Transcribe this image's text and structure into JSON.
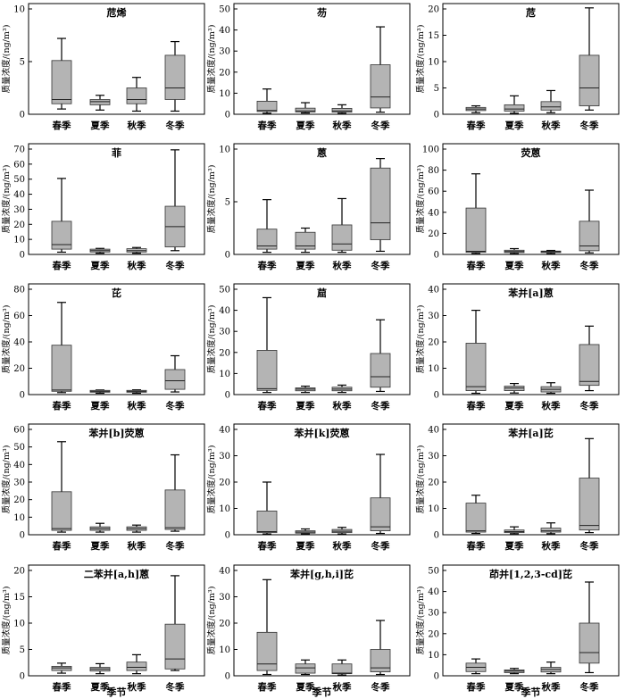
{
  "chart_data": [
    {
      "type": "box",
      "title": "苊烯",
      "ylabel": "质量浓度/(ng/m³)",
      "ylim": [
        0,
        10
      ],
      "yticks": [
        0,
        5,
        10
      ],
      "categories": [
        "春季",
        "夏季",
        "秋季",
        "冬季"
      ],
      "boxes": [
        {
          "min": 0.5,
          "q1": 1.0,
          "median": 1.4,
          "q3": 5.1,
          "max": 7.2
        },
        {
          "min": 0.4,
          "q1": 0.9,
          "median": 1.2,
          "q3": 1.4,
          "max": 1.8
        },
        {
          "min": 0.3,
          "q1": 1.0,
          "median": 1.4,
          "q3": 2.5,
          "max": 3.5
        },
        {
          "min": 0.3,
          "q1": 1.4,
          "median": 2.5,
          "q3": 5.6,
          "max": 6.9
        }
      ]
    },
    {
      "type": "box",
      "title": "芴",
      "ylabel": "质量浓度/(ng/m³)",
      "ylim": [
        0,
        50
      ],
      "yticks": [
        0,
        10,
        20,
        30,
        40,
        50
      ],
      "categories": [
        "春季",
        "夏季",
        "秋季",
        "冬季"
      ],
      "boxes": [
        {
          "min": 0.5,
          "q1": 1.3,
          "median": 1.8,
          "q3": 6.2,
          "max": 12.0
        },
        {
          "min": 0.6,
          "q1": 1.1,
          "median": 1.6,
          "q3": 2.9,
          "max": 5.5
        },
        {
          "min": 0.5,
          "q1": 1.0,
          "median": 1.6,
          "q3": 2.8,
          "max": 4.5
        },
        {
          "min": 1.0,
          "q1": 3.0,
          "median": 8.2,
          "q3": 23.5,
          "max": 41.5
        }
      ]
    },
    {
      "type": "box",
      "title": "苊",
      "ylabel": "质量浓度/(ng/m³)",
      "ylim": [
        0,
        20
      ],
      "yticks": [
        0,
        5,
        10,
        15,
        20
      ],
      "categories": [
        "春季",
        "夏季",
        "秋季",
        "冬季"
      ],
      "boxes": [
        {
          "min": 0.3,
          "q1": 0.7,
          "median": 1.0,
          "q3": 1.3,
          "max": 1.6
        },
        {
          "min": 0.2,
          "q1": 0.6,
          "median": 1.0,
          "q3": 1.8,
          "max": 3.5
        },
        {
          "min": 0.3,
          "q1": 0.8,
          "median": 1.4,
          "q3": 2.4,
          "max": 4.5
        },
        {
          "min": 0.8,
          "q1": 1.6,
          "median": 5.0,
          "q3": 11.2,
          "max": 20.2
        }
      ]
    },
    {
      "type": "box",
      "title": "菲",
      "ylabel": "质量浓度/(ng/m³)",
      "ylim": [
        0,
        70
      ],
      "yticks": [
        0,
        10,
        20,
        30,
        40,
        50,
        60,
        70
      ],
      "categories": [
        "春季",
        "夏季",
        "秋季",
        "冬季"
      ],
      "boxes": [
        {
          "min": 1.5,
          "q1": 3.5,
          "median": 6.5,
          "q3": 22.0,
          "max": 50.5
        },
        {
          "min": 0.8,
          "q1": 1.6,
          "median": 2.5,
          "q3": 3.5,
          "max": 4.0
        },
        {
          "min": 0.8,
          "q1": 1.6,
          "median": 2.5,
          "q3": 3.8,
          "max": 4.6
        },
        {
          "min": 2.5,
          "q1": 5.0,
          "median": 18.5,
          "q3": 32.0,
          "max": 69.5
        }
      ]
    },
    {
      "type": "box",
      "title": "蒽",
      "ylabel": "质量浓度/(ng/m³)",
      "ylim": [
        0,
        10
      ],
      "yticks": [
        0,
        5,
        10
      ],
      "categories": [
        "春季",
        "夏季",
        "秋季",
        "冬季"
      ],
      "boxes": [
        {
          "min": 0.2,
          "q1": 0.5,
          "median": 0.8,
          "q3": 2.4,
          "max": 5.2
        },
        {
          "min": 0.2,
          "q1": 0.5,
          "median": 0.8,
          "q3": 2.1,
          "max": 2.5
        },
        {
          "min": 0.2,
          "q1": 0.4,
          "median": 1.0,
          "q3": 2.8,
          "max": 5.3
        },
        {
          "min": 0.3,
          "q1": 1.4,
          "median": 3.0,
          "q3": 8.2,
          "max": 9.1
        }
      ]
    },
    {
      "type": "box",
      "title": "荧蒽",
      "ylabel": "质量浓度/(ng/m³)",
      "ylim": [
        0,
        100
      ],
      "yticks": [
        0,
        20,
        40,
        60,
        80,
        100
      ],
      "categories": [
        "春季",
        "夏季",
        "秋季",
        "冬季"
      ],
      "boxes": [
        {
          "min": 1.0,
          "q1": 2.0,
          "median": 3.0,
          "q3": 44.0,
          "max": 76.5
        },
        {
          "min": 0.8,
          "q1": 1.8,
          "median": 2.8,
          "q3": 4.0,
          "max": 5.5
        },
        {
          "min": 0.8,
          "q1": 1.8,
          "median": 2.6,
          "q3": 3.2,
          "max": 3.8
        },
        {
          "min": 1.5,
          "q1": 3.5,
          "median": 8.0,
          "q3": 31.5,
          "max": 61.0
        }
      ]
    },
    {
      "type": "box",
      "title": "芘",
      "ylabel": "质量浓度/(ng/m³)",
      "ylim": [
        0,
        80
      ],
      "yticks": [
        0,
        20,
        40,
        60,
        80
      ],
      "categories": [
        "春季",
        "夏季",
        "秋季",
        "冬季"
      ],
      "boxes": [
        {
          "min": 1.5,
          "q1": 2.5,
          "median": 3.5,
          "q3": 37.5,
          "max": 70.0
        },
        {
          "min": 1.0,
          "q1": 1.8,
          "median": 2.5,
          "q3": 3.2,
          "max": 3.5
        },
        {
          "min": 1.0,
          "q1": 1.8,
          "median": 2.5,
          "q3": 3.2,
          "max": 3.6
        },
        {
          "min": 2.0,
          "q1": 4.0,
          "median": 10.5,
          "q3": 19.0,
          "max": 29.5
        }
      ]
    },
    {
      "type": "box",
      "title": "䓛",
      "ylabel": "质量浓度/(ng/m³)",
      "ylim": [
        0,
        50
      ],
      "yticks": [
        0,
        10,
        20,
        30,
        40,
        50
      ],
      "categories": [
        "春季",
        "夏季",
        "秋季",
        "冬季"
      ],
      "boxes": [
        {
          "min": 1.0,
          "q1": 2.0,
          "median": 2.8,
          "q3": 21.0,
          "max": 46.0
        },
        {
          "min": 1.0,
          "q1": 1.8,
          "median": 2.6,
          "q3": 3.2,
          "max": 4.0
        },
        {
          "min": 1.0,
          "q1": 1.8,
          "median": 2.6,
          "q3": 3.5,
          "max": 4.5
        },
        {
          "min": 1.5,
          "q1": 3.5,
          "median": 8.5,
          "q3": 19.5,
          "max": 35.5
        }
      ]
    },
    {
      "type": "box",
      "title": "苯并[a]蒽",
      "ylabel": "质量浓度/(ng/m³)",
      "ylim": [
        0,
        40
      ],
      "yticks": [
        0,
        10,
        20,
        30,
        40
      ],
      "categories": [
        "春季",
        "夏季",
        "秋季",
        "冬季"
      ],
      "boxes": [
        {
          "min": 0.5,
          "q1": 1.5,
          "median": 3.0,
          "q3": 19.5,
          "max": 32.0
        },
        {
          "min": 0.6,
          "q1": 1.5,
          "median": 2.5,
          "q3": 3.2,
          "max": 4.2
        },
        {
          "min": 0.5,
          "q1": 1.0,
          "median": 2.0,
          "q3": 3.0,
          "max": 4.5
        },
        {
          "min": 1.5,
          "q1": 3.5,
          "median": 5.0,
          "q3": 19.0,
          "max": 26.0
        }
      ]
    },
    {
      "type": "box",
      "title": "苯并[b]荧蒽",
      "ylabel": "质量浓度/(ng/m³)",
      "ylim": [
        0,
        60
      ],
      "yticks": [
        0,
        10,
        20,
        30,
        40,
        50,
        60
      ],
      "categories": [
        "春季",
        "夏季",
        "秋季",
        "冬季"
      ],
      "boxes": [
        {
          "min": 1.5,
          "q1": 2.5,
          "median": 3.5,
          "q3": 24.5,
          "max": 53.0
        },
        {
          "min": 1.5,
          "q1": 2.5,
          "median": 3.5,
          "q3": 4.5,
          "max": 6.5
        },
        {
          "min": 1.5,
          "q1": 2.5,
          "median": 3.5,
          "q3": 4.5,
          "max": 5.5
        },
        {
          "min": 2.0,
          "q1": 3.0,
          "median": 4.0,
          "q3": 25.5,
          "max": 45.5
        }
      ]
    },
    {
      "type": "box",
      "title": "苯并[k]荧蒽",
      "ylabel": "质量浓度/(ng/m³)",
      "ylim": [
        0,
        40
      ],
      "yticks": [
        0,
        10,
        20,
        30,
        40
      ],
      "categories": [
        "春季",
        "夏季",
        "秋季",
        "冬季"
      ],
      "boxes": [
        {
          "min": 0.3,
          "q1": 0.8,
          "median": 1.2,
          "q3": 9.0,
          "max": 20.0
        },
        {
          "min": 0.3,
          "q1": 0.6,
          "median": 1.0,
          "q3": 1.5,
          "max": 2.2
        },
        {
          "min": 0.3,
          "q1": 0.8,
          "median": 1.3,
          "q3": 2.0,
          "max": 2.8
        },
        {
          "min": 0.5,
          "q1": 1.5,
          "median": 3.0,
          "q3": 14.0,
          "max": 30.5
        }
      ]
    },
    {
      "type": "box",
      "title": "苯并[a]芘",
      "ylabel": "质量浓度/(ng/m³)",
      "ylim": [
        0,
        40
      ],
      "yticks": [
        0,
        10,
        20,
        30,
        40
      ],
      "categories": [
        "春季",
        "夏季",
        "秋季",
        "冬季"
      ],
      "boxes": [
        {
          "min": 0.5,
          "q1": 1.0,
          "median": 1.5,
          "q3": 12.0,
          "max": 15.0
        },
        {
          "min": 0.4,
          "q1": 0.8,
          "median": 1.2,
          "q3": 1.8,
          "max": 3.0
        },
        {
          "min": 0.4,
          "q1": 1.0,
          "median": 1.5,
          "q3": 2.5,
          "max": 4.5
        },
        {
          "min": 0.8,
          "q1": 1.8,
          "median": 3.5,
          "q3": 21.5,
          "max": 36.5
        }
      ]
    },
    {
      "type": "box",
      "title": "二苯并[a,h]蒽",
      "ylabel": "质量浓度/(ng/m³)",
      "ylim": [
        0,
        20
      ],
      "yticks": [
        0,
        5,
        10,
        15,
        20
      ],
      "categories": [
        "春季",
        "夏季",
        "秋季",
        "冬季"
      ],
      "boxes": [
        {
          "min": 0.5,
          "q1": 1.0,
          "median": 1.5,
          "q3": 1.8,
          "max": 2.4
        },
        {
          "min": 0.4,
          "q1": 0.9,
          "median": 1.3,
          "q3": 1.6,
          "max": 2.3
        },
        {
          "min": 0.4,
          "q1": 1.0,
          "median": 1.6,
          "q3": 2.6,
          "max": 4.0
        },
        {
          "min": 1.0,
          "q1": 1.3,
          "median": 3.2,
          "q3": 9.8,
          "max": 19.0
        }
      ]
    },
    {
      "type": "box",
      "title": "苯并[g,h,i]芘",
      "ylabel": "质量浓度/(ng/m³)",
      "ylim": [
        0,
        40
      ],
      "yticks": [
        0,
        10,
        20,
        30,
        40
      ],
      "categories": [
        "春季",
        "夏季",
        "秋季",
        "冬季"
      ],
      "boxes": [
        {
          "min": 0.5,
          "q1": 2.0,
          "median": 4.5,
          "q3": 16.5,
          "max": 36.5
        },
        {
          "min": 0.5,
          "q1": 1.0,
          "median": 3.0,
          "q3": 4.5,
          "max": 6.0
        },
        {
          "min": 0.3,
          "q1": 0.8,
          "median": 1.0,
          "q3": 4.5,
          "max": 6.0
        },
        {
          "min": 0.5,
          "q1": 1.5,
          "median": 3.0,
          "q3": 10.0,
          "max": 21.0
        }
      ]
    },
    {
      "type": "box",
      "title": "茚并[1,2,3-cd]芘",
      "ylabel": "质量浓度/(ng/m³)",
      "ylim": [
        0,
        50
      ],
      "yticks": [
        0,
        10,
        20,
        30,
        40,
        50
      ],
      "categories": [
        "春季",
        "夏季",
        "秋季",
        "冬季"
      ],
      "boxes": [
        {
          "min": 1.0,
          "q1": 2.0,
          "median": 4.0,
          "q3": 6.0,
          "max": 8.0
        },
        {
          "min": 1.0,
          "q1": 1.5,
          "median": 2.2,
          "q3": 2.8,
          "max": 3.5
        },
        {
          "min": 1.0,
          "q1": 1.8,
          "median": 3.0,
          "q3": 4.0,
          "max": 6.5
        },
        {
          "min": 1.5,
          "q1": 6.0,
          "median": 11.0,
          "q3": 25.0,
          "max": 44.5
        }
      ]
    }
  ],
  "xlabel": "季节"
}
